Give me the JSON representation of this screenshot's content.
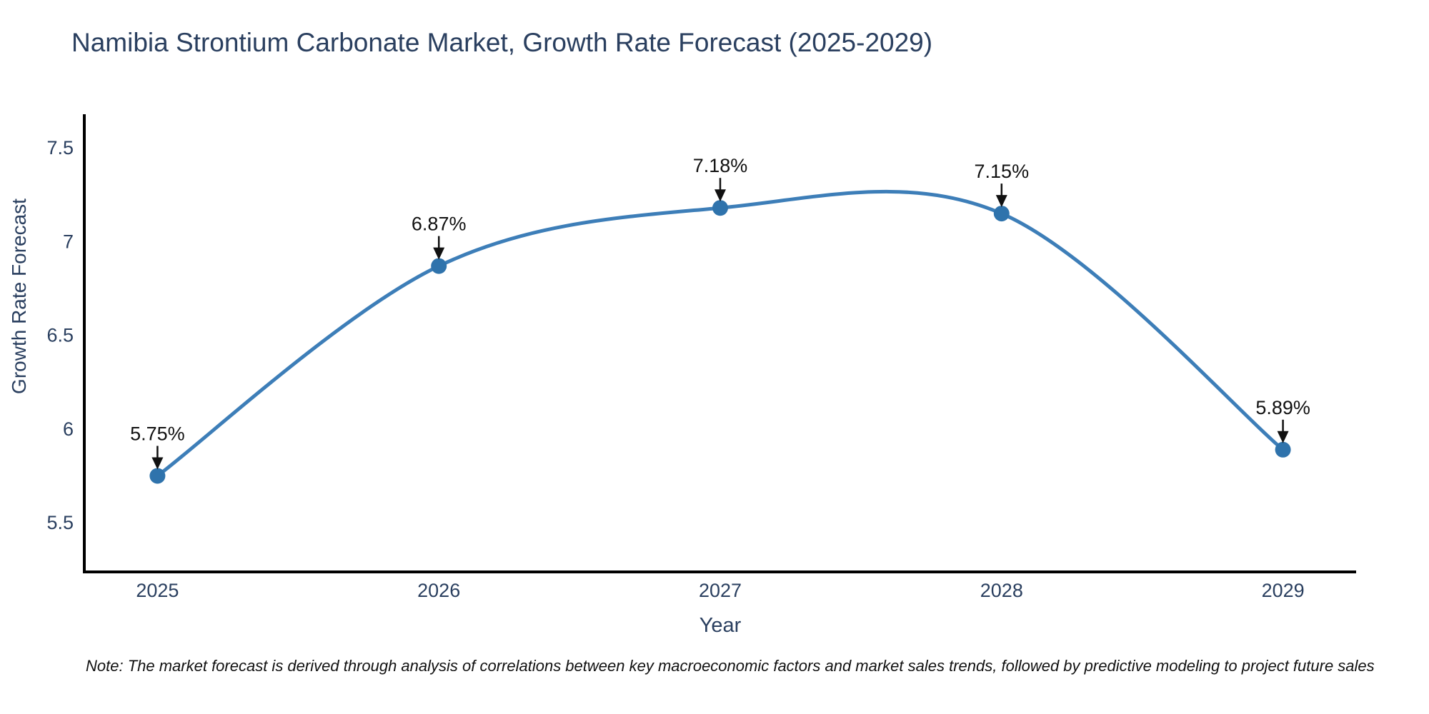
{
  "chart_data": {
    "type": "line",
    "title": "Namibia Strontium Carbonate Market, Growth Rate Forecast (2025-2029)",
    "xlabel": "Year",
    "ylabel": "Growth Rate Forecast",
    "categories": [
      2025,
      2026,
      2027,
      2028,
      2029
    ],
    "values": [
      5.75,
      6.87,
      7.18,
      7.15,
      5.89
    ],
    "point_labels": [
      "5.75%",
      "6.87%",
      "7.18%",
      "7.15%",
      "5.89%"
    ],
    "yticks": [
      5.5,
      6,
      6.5,
      7,
      7.5
    ],
    "ylim": [
      5.23,
      7.68
    ],
    "xlim": [
      2024.74,
      2029.26
    ],
    "grid": false,
    "legend": "none",
    "smooth_spline": true,
    "colors": {
      "line": "#3d7eb8",
      "marker": "#2f73ac",
      "axis": "#000000",
      "axis_text": "#2a3f5f",
      "annotation_text": "#111111"
    }
  },
  "note": "Note: The market forecast is derived through analysis of correlations between key macroeconomic factors and market sales trends, followed by predictive modeling to project future sales"
}
